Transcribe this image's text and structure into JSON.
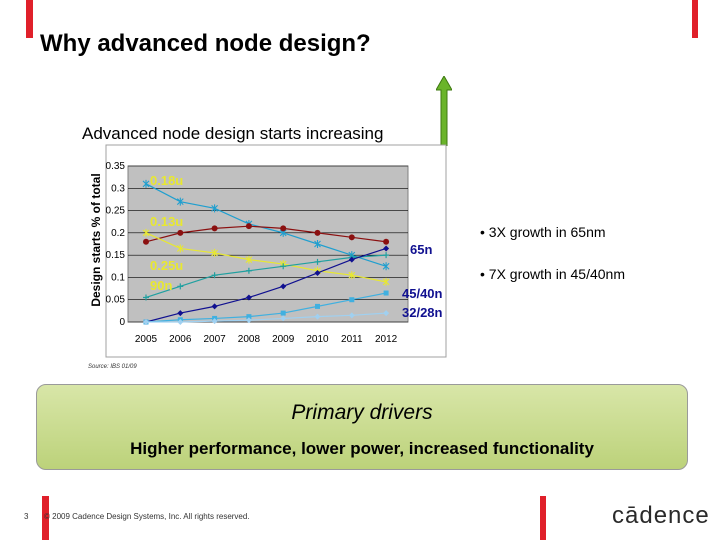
{
  "slide": {
    "title": "Why advanced node design?",
    "chart_subtitle": "Advanced node design starts increasing",
    "bullets": [
      "• 3X growth in 65nm",
      "• 7X growth in 45/40nm"
    ],
    "source": "Source: IBS 01/09",
    "drivers_title": "Primary drivers",
    "drivers_subtitle": "Higher performance, lower power, increased functionality",
    "page_number": "3",
    "copyright": "© 2009 Cadence Design Systems, Inc. All rights reserved.",
    "logo": "cādence"
  },
  "colors": {
    "accent_red": "#e0202a",
    "arrow_green": "#6ab42a",
    "plot_bg": "#c0c0c0"
  },
  "chart_data": {
    "type": "line",
    "ylabel": "Design starts % of total",
    "xlabel": "",
    "categories": [
      "2005",
      "2006",
      "2007",
      "2008",
      "2009",
      "2010",
      "2011",
      "2012"
    ],
    "ylim": [
      0,
      0.35
    ],
    "yticks": [
      "0",
      "0.05",
      "0.1",
      "0.15",
      "0.2",
      "0.25",
      "0.3",
      "0.35"
    ],
    "grid": true,
    "series": [
      {
        "name": "0.18u",
        "color": "#1f9fcf",
        "marker": "star",
        "values": [
          0.31,
          0.27,
          0.255,
          0.22,
          0.2,
          0.175,
          0.15,
          0.125
        ]
      },
      {
        "name": "0.13u",
        "color": "#8b1010",
        "marker": "circle",
        "values": [
          0.18,
          0.2,
          0.21,
          0.215,
          0.21,
          0.2,
          0.19,
          0.18
        ]
      },
      {
        "name": "0.25u",
        "color": "#e8e830",
        "marker": "star",
        "values": [
          0.2,
          0.165,
          0.155,
          0.14,
          0.13,
          0.115,
          0.105,
          0.09
        ]
      },
      {
        "name": "90n",
        "color": "#20a0a0",
        "marker": "plus",
        "values": [
          0.055,
          0.08,
          0.105,
          0.115,
          0.125,
          0.135,
          0.145,
          0.15
        ]
      },
      {
        "name": "65n",
        "color": "#101090",
        "marker": "diamond",
        "values": [
          0.0,
          0.02,
          0.035,
          0.055,
          0.08,
          0.11,
          0.14,
          0.165
        ]
      },
      {
        "name": "45/40n",
        "color": "#40b0e0",
        "marker": "square",
        "values": [
          0.0,
          0.005,
          0.008,
          0.012,
          0.02,
          0.035,
          0.05,
          0.065
        ]
      },
      {
        "name": "32/28n",
        "color": "#a0d0f0",
        "marker": "diamond",
        "values": [
          0.0,
          0.0,
          0.002,
          0.004,
          0.008,
          0.012,
          0.015,
          0.02
        ]
      }
    ],
    "labels": [
      "0.18u",
      "0.13u",
      "0.25u",
      "90n",
      "65n",
      "45/40n",
      "32/28n"
    ]
  }
}
